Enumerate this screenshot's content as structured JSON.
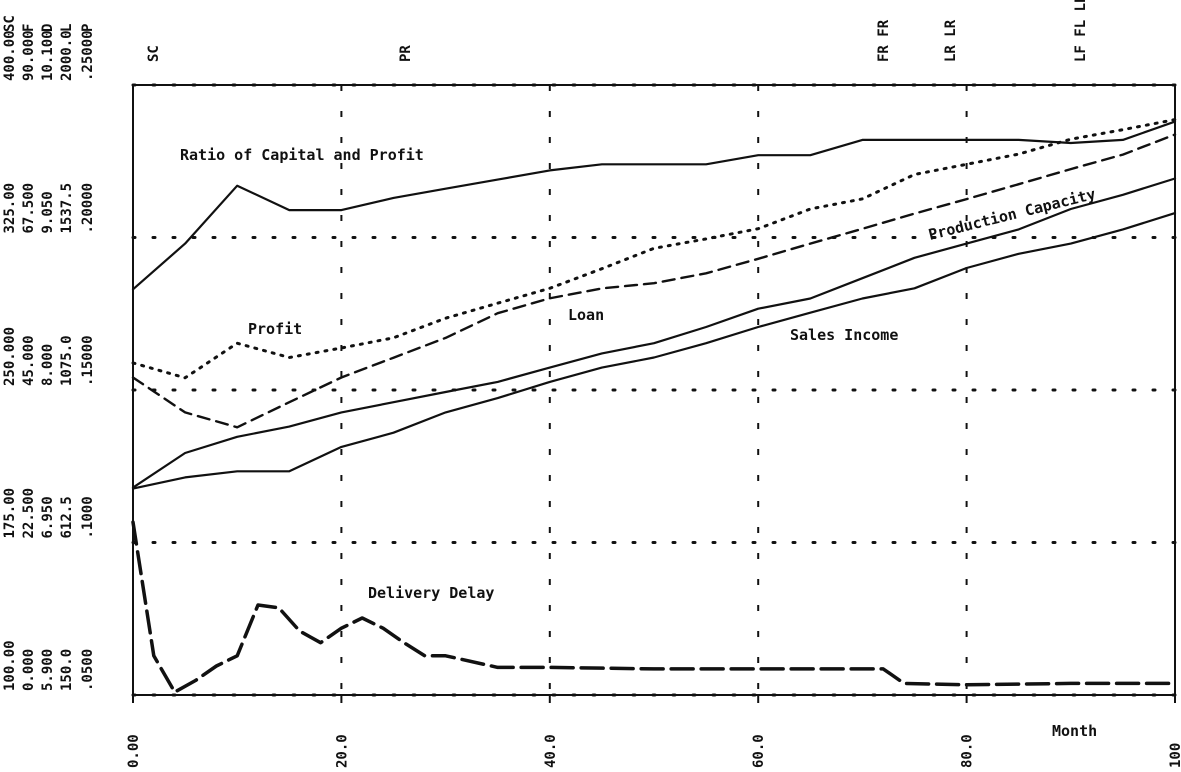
{
  "chart_data": {
    "type": "line",
    "x_label": "Month",
    "xlim": [
      0,
      100
    ],
    "xticks": [
      {
        "value": 0,
        "label": "0.00"
      },
      {
        "value": 20,
        "label": "20.0"
      },
      {
        "value": 40,
        "label": "40.0"
      },
      {
        "value": 60,
        "label": "60.0"
      },
      {
        "value": 80,
        "label": "80.0"
      },
      100
    ],
    "grid": true,
    "top_markers": [
      "SC",
      "PR",
      "FR FR",
      "LR LR",
      "LF FL LP LF LF,CF CP"
    ],
    "y_scales": [
      {
        "name": "SC",
        "ylim": [
          100,
          400
        ],
        "yticks": [
          {
            "value": 100,
            "label": "100.00"
          },
          {
            "value": 175,
            "label": "175.00"
          },
          {
            "value": 250,
            "label": "250.000"
          },
          {
            "value": 325,
            "label": "325.00"
          },
          {
            "value": 400,
            "label": "400.00"
          }
        ]
      },
      {
        "name": "F",
        "ylim": [
          0,
          90
        ],
        "yticks": [
          {
            "value": 0,
            "label": "0.000"
          },
          {
            "value": 22.5,
            "label": "22.500"
          },
          {
            "value": 45,
            "label": "45.000"
          },
          {
            "value": 67.5,
            "label": "67.500"
          },
          {
            "value": 90,
            "label": "90.000"
          }
        ]
      },
      {
        "name": "D",
        "ylim": [
          5.9,
          10.1
        ],
        "yticks": [
          {
            "value": 5.9,
            "label": "5.900"
          },
          {
            "value": 6.95,
            "label": "6.950"
          },
          {
            "value": 8,
            "label": "8.000"
          },
          {
            "value": 9.05,
            "label": "9.050"
          },
          {
            "value": 10.1,
            "label": "10.100"
          }
        ]
      },
      {
        "name": "L",
        "ylim": [
          150,
          2000
        ],
        "yticks": [
          {
            "value": 150,
            "label": "150.0"
          },
          612.5,
          {
            "value": 1075,
            "label": "1075.0"
          },
          1537.5,
          {
            "value": 2000,
            "label": "2000.0"
          }
        ]
      },
      {
        "name": "P",
        "ylim": [
          0.05,
          0.25
        ],
        "yticks": [
          {
            "value": 0.05,
            "label": ".0500"
          },
          {
            "value": 0.1,
            "label": ".1000"
          },
          {
            "value": 0.15,
            "label": ".15000"
          },
          {
            "value": 0.2,
            "label": ".20000"
          },
          {
            "value": 0.25,
            "label": ".25000"
          }
        ]
      }
    ],
    "series": [
      {
        "name": "Ratio of Capital and Profit",
        "scale": 4,
        "color": "#111111",
        "line_style": "solid",
        "x": [
          0,
          5,
          10,
          15,
          20,
          25,
          30,
          35,
          40,
          45,
          50,
          55,
          60,
          65,
          70,
          75,
          80,
          85,
          90,
          95,
          100
        ],
        "values": [
          0.183,
          0.198,
          0.217,
          0.209,
          0.209,
          0.213,
          0.216,
          0.219,
          0.222,
          0.224,
          0.224,
          0.224,
          0.227,
          0.227,
          0.232,
          0.232,
          0.232,
          0.232,
          0.231,
          0.232,
          0.238
        ]
      },
      {
        "name": "Profit",
        "scale": 1,
        "color": "#111111",
        "line_style": "dotted",
        "x": [
          0,
          5,
          10,
          15,
          20,
          25,
          30,
          35,
          40,
          45,
          50,
          55,
          60,
          65,
          70,
          75,
          80,
          85,
          90,
          95,
          100
        ],
        "values": [
          49.0,
          46.8,
          51.9,
          49.8,
          51.2,
          52.7,
          55.6,
          57.8,
          60.0,
          62.9,
          65.9,
          67.3,
          68.8,
          71.7,
          73.2,
          76.8,
          78.3,
          79.8,
          82.0,
          83.4,
          84.9
        ]
      },
      {
        "name": "Loan",
        "scale": 3,
        "color": "#111111",
        "line_style": "dashed",
        "x": [
          0,
          5,
          10,
          15,
          20,
          25,
          30,
          35,
          40,
          45,
          50,
          55,
          60,
          65,
          70,
          75,
          80,
          85,
          90,
          95,
          100
        ],
        "values": [
          1113,
          1007,
          962,
          1038,
          1113,
          1173,
          1233,
          1308,
          1353,
          1383,
          1399,
          1429,
          1473,
          1519,
          1564,
          1610,
          1654,
          1699,
          1745,
          1789,
          1850
        ]
      },
      {
        "name": "Production Capacity",
        "scale": 0,
        "color": "#111111",
        "line_style": "solid",
        "x": [
          0,
          5,
          10,
          15,
          20,
          25,
          30,
          35,
          40,
          45,
          50,
          55,
          60,
          65,
          70,
          75,
          80,
          85,
          90,
          95,
          100
        ],
        "values": [
          202,
          219,
          227,
          232,
          239,
          244,
          249,
          254,
          261,
          268,
          273,
          281,
          290,
          295,
          305,
          315,
          322,
          329,
          339,
          346,
          354
        ]
      },
      {
        "name": "Sales Income",
        "scale": 0,
        "color": "#111111",
        "line_style": "solid",
        "x": [
          0,
          5,
          10,
          15,
          20,
          25,
          30,
          35,
          40,
          45,
          50,
          55,
          60,
          65,
          70,
          75,
          80,
          85,
          90,
          95,
          100
        ],
        "values": [
          201.5,
          207,
          210,
          210,
          222,
          229,
          239,
          246,
          254,
          261,
          266,
          273,
          281,
          288,
          295,
          300,
          310,
          317,
          322,
          329,
          337
        ]
      },
      {
        "name": "Delivery Delay",
        "scale": 2,
        "color": "#111111",
        "line_style": "dashed-heavy",
        "x": [
          0,
          2,
          4,
          6,
          8,
          10,
          12,
          14,
          16,
          18,
          20,
          22,
          24,
          26,
          28,
          30,
          35,
          40,
          50,
          60,
          70,
          72,
          74,
          80,
          90,
          100
        ],
        "values": [
          7.09,
          6.17,
          5.92,
          6.0,
          6.1,
          6.17,
          6.52,
          6.5,
          6.34,
          6.26,
          6.36,
          6.43,
          6.36,
          6.26,
          6.17,
          6.17,
          6.09,
          6.09,
          6.08,
          6.08,
          6.08,
          6.08,
          5.98,
          5.97,
          5.98,
          5.98
        ]
      }
    ]
  }
}
